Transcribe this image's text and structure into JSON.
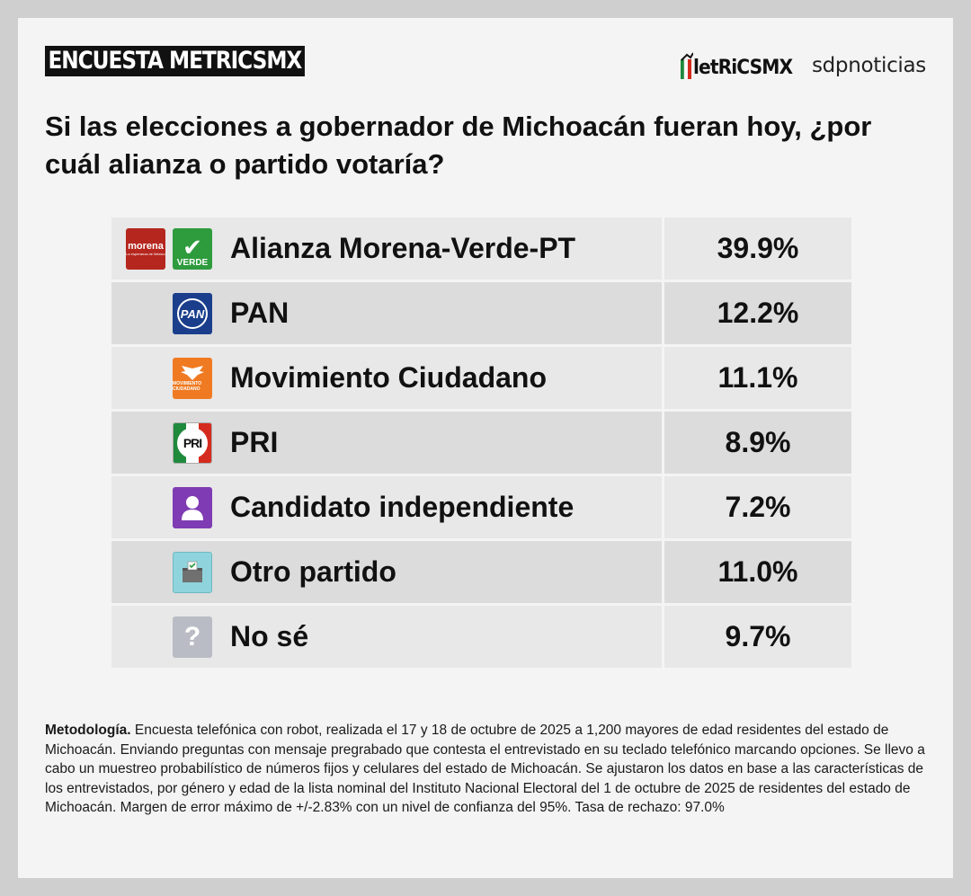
{
  "header": {
    "tag": "ENCUESTA METRICSMX",
    "metrics_logo_text": "letRiCSMX",
    "sdp_logo_text": "sdpnoticias"
  },
  "question": "Si las elecciones a gobernador de Michoacán fueran hoy, ¿por cuál alianza o partido votaría?",
  "chart_data": {
    "type": "table",
    "title": "Si las elecciones a gobernador de Michoacán fueran hoy, ¿por cuál alianza o partido votaría?",
    "rows": [
      {
        "label": "Alianza Morena-Verde-PT",
        "value": 39.9,
        "display": "39.9%",
        "icons": [
          "morena-logo",
          "verde-logo"
        ]
      },
      {
        "label": "PAN",
        "value": 12.2,
        "display": "12.2%",
        "icons": [
          "pan-logo"
        ]
      },
      {
        "label": "Movimiento Ciudadano",
        "value": 11.1,
        "display": "11.1%",
        "icons": [
          "movimiento-ciudadano-logo"
        ]
      },
      {
        "label": "PRI",
        "value": 8.9,
        "display": "8.9%",
        "icons": [
          "pri-logo"
        ]
      },
      {
        "label": "Candidato independiente",
        "value": 7.2,
        "display": "7.2%",
        "icons": [
          "person-icon"
        ]
      },
      {
        "label": "Otro partido",
        "value": 11.0,
        "display": "11.0%",
        "icons": [
          "ballot-box-icon"
        ]
      },
      {
        "label": "No sé",
        "value": 9.7,
        "display": "9.7%",
        "icons": [
          "question-mark-icon"
        ]
      }
    ]
  },
  "logo_text": {
    "morena": "morena",
    "morena_sub": "La esperanza de México",
    "verde": "VERDE",
    "pan": "PAN",
    "mc": "MOVIMIENTO CIUDADANO",
    "pri": "PRI"
  },
  "colors": {
    "morena": "#b5261e",
    "verde": "#2e9b3d",
    "pan": "#1a3e8c",
    "mc": "#f07a21",
    "pri_green": "#1f8a3c",
    "pri_red": "#d52b1e",
    "independiente": "#7e3bb3",
    "otro": "#8fd4dc",
    "nose": "#b9bcc4"
  },
  "methodology": {
    "label": "Metodología.",
    "text": "Encuesta telefónica con robot, realizada el 17 y 18 de octubre de 2025 a 1,200 mayores de edad residentes del estado de Michoacán. Enviando preguntas con mensaje pregrabado que contesta el entrevistado en su teclado telefónico marcando opciones. Se llevo a cabo un muestreo probabilístico de números fijos y celulares del estado de Michoacán. Se ajustaron los datos en base a las características de los entrevistados, por género y edad de la lista nominal del Instituto Nacional Electoral del 1 de octubre de 2025 de residentes del estado de Michoacán. Margen de error máximo de +/-2.83% con un nivel de confianza del 95%. Tasa de rechazo: 97.0%"
  }
}
